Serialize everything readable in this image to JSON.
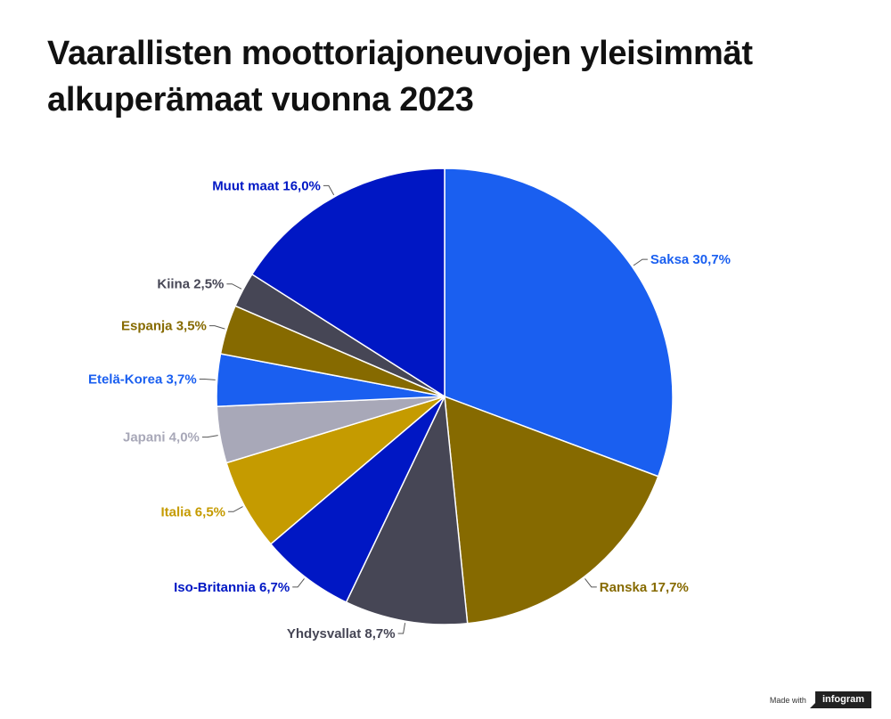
{
  "title_lines": [
    "Vaarallisten moottoriajoneuvojen yleisimmät",
    "alkuperämaat vuonna 2023"
  ],
  "chart_data": {
    "type": "pie",
    "title": "Vaarallisten moottoriajoneuvojen yleisimmät alkuperämaat vuonna 2023",
    "slices": [
      {
        "label": "Saksa",
        "value": 30.7,
        "display": "Saksa 30,7%",
        "color": "#1a5ff0",
        "label_color": "#1a5ff0"
      },
      {
        "label": "Ranska",
        "value": 17.7,
        "display": "Ranska 17,7%",
        "color": "#866a00",
        "label_color": "#866a00"
      },
      {
        "label": "Yhdysvallat",
        "value": 8.7,
        "display": "Yhdysvallat 8,7%",
        "color": "#464655",
        "label_color": "#464655"
      },
      {
        "label": "Iso-Britannia",
        "value": 6.7,
        "display": "Iso-Britannia 6,7%",
        "color": "#0017c4",
        "label_color": "#0017c4"
      },
      {
        "label": "Italia",
        "value": 6.5,
        "display": "Italia 6,5%",
        "color": "#c59b00",
        "label_color": "#c59b00"
      },
      {
        "label": "Japani",
        "value": 4.0,
        "display": "Japani 4,0%",
        "color": "#a8a8b8",
        "label_color": "#a8a8b8"
      },
      {
        "label": "Etelä-Korea",
        "value": 3.7,
        "display": "Etelä-Korea 3,7%",
        "color": "#1a5ff0",
        "label_color": "#1a5ff0"
      },
      {
        "label": "Espanja",
        "value": 3.5,
        "display": "Espanja 3,5%",
        "color": "#866a00",
        "label_color": "#866a00"
      },
      {
        "label": "Kiina",
        "value": 2.5,
        "display": "Kiina 2,5%",
        "color": "#464655",
        "label_color": "#464655"
      },
      {
        "label": "Muut maat",
        "value": 16.0,
        "display": "Muut maat 16,0%",
        "color": "#0017c4",
        "label_color": "#0017c4"
      }
    ]
  },
  "footer": {
    "made_with": "Made with",
    "brand": "infogram"
  }
}
